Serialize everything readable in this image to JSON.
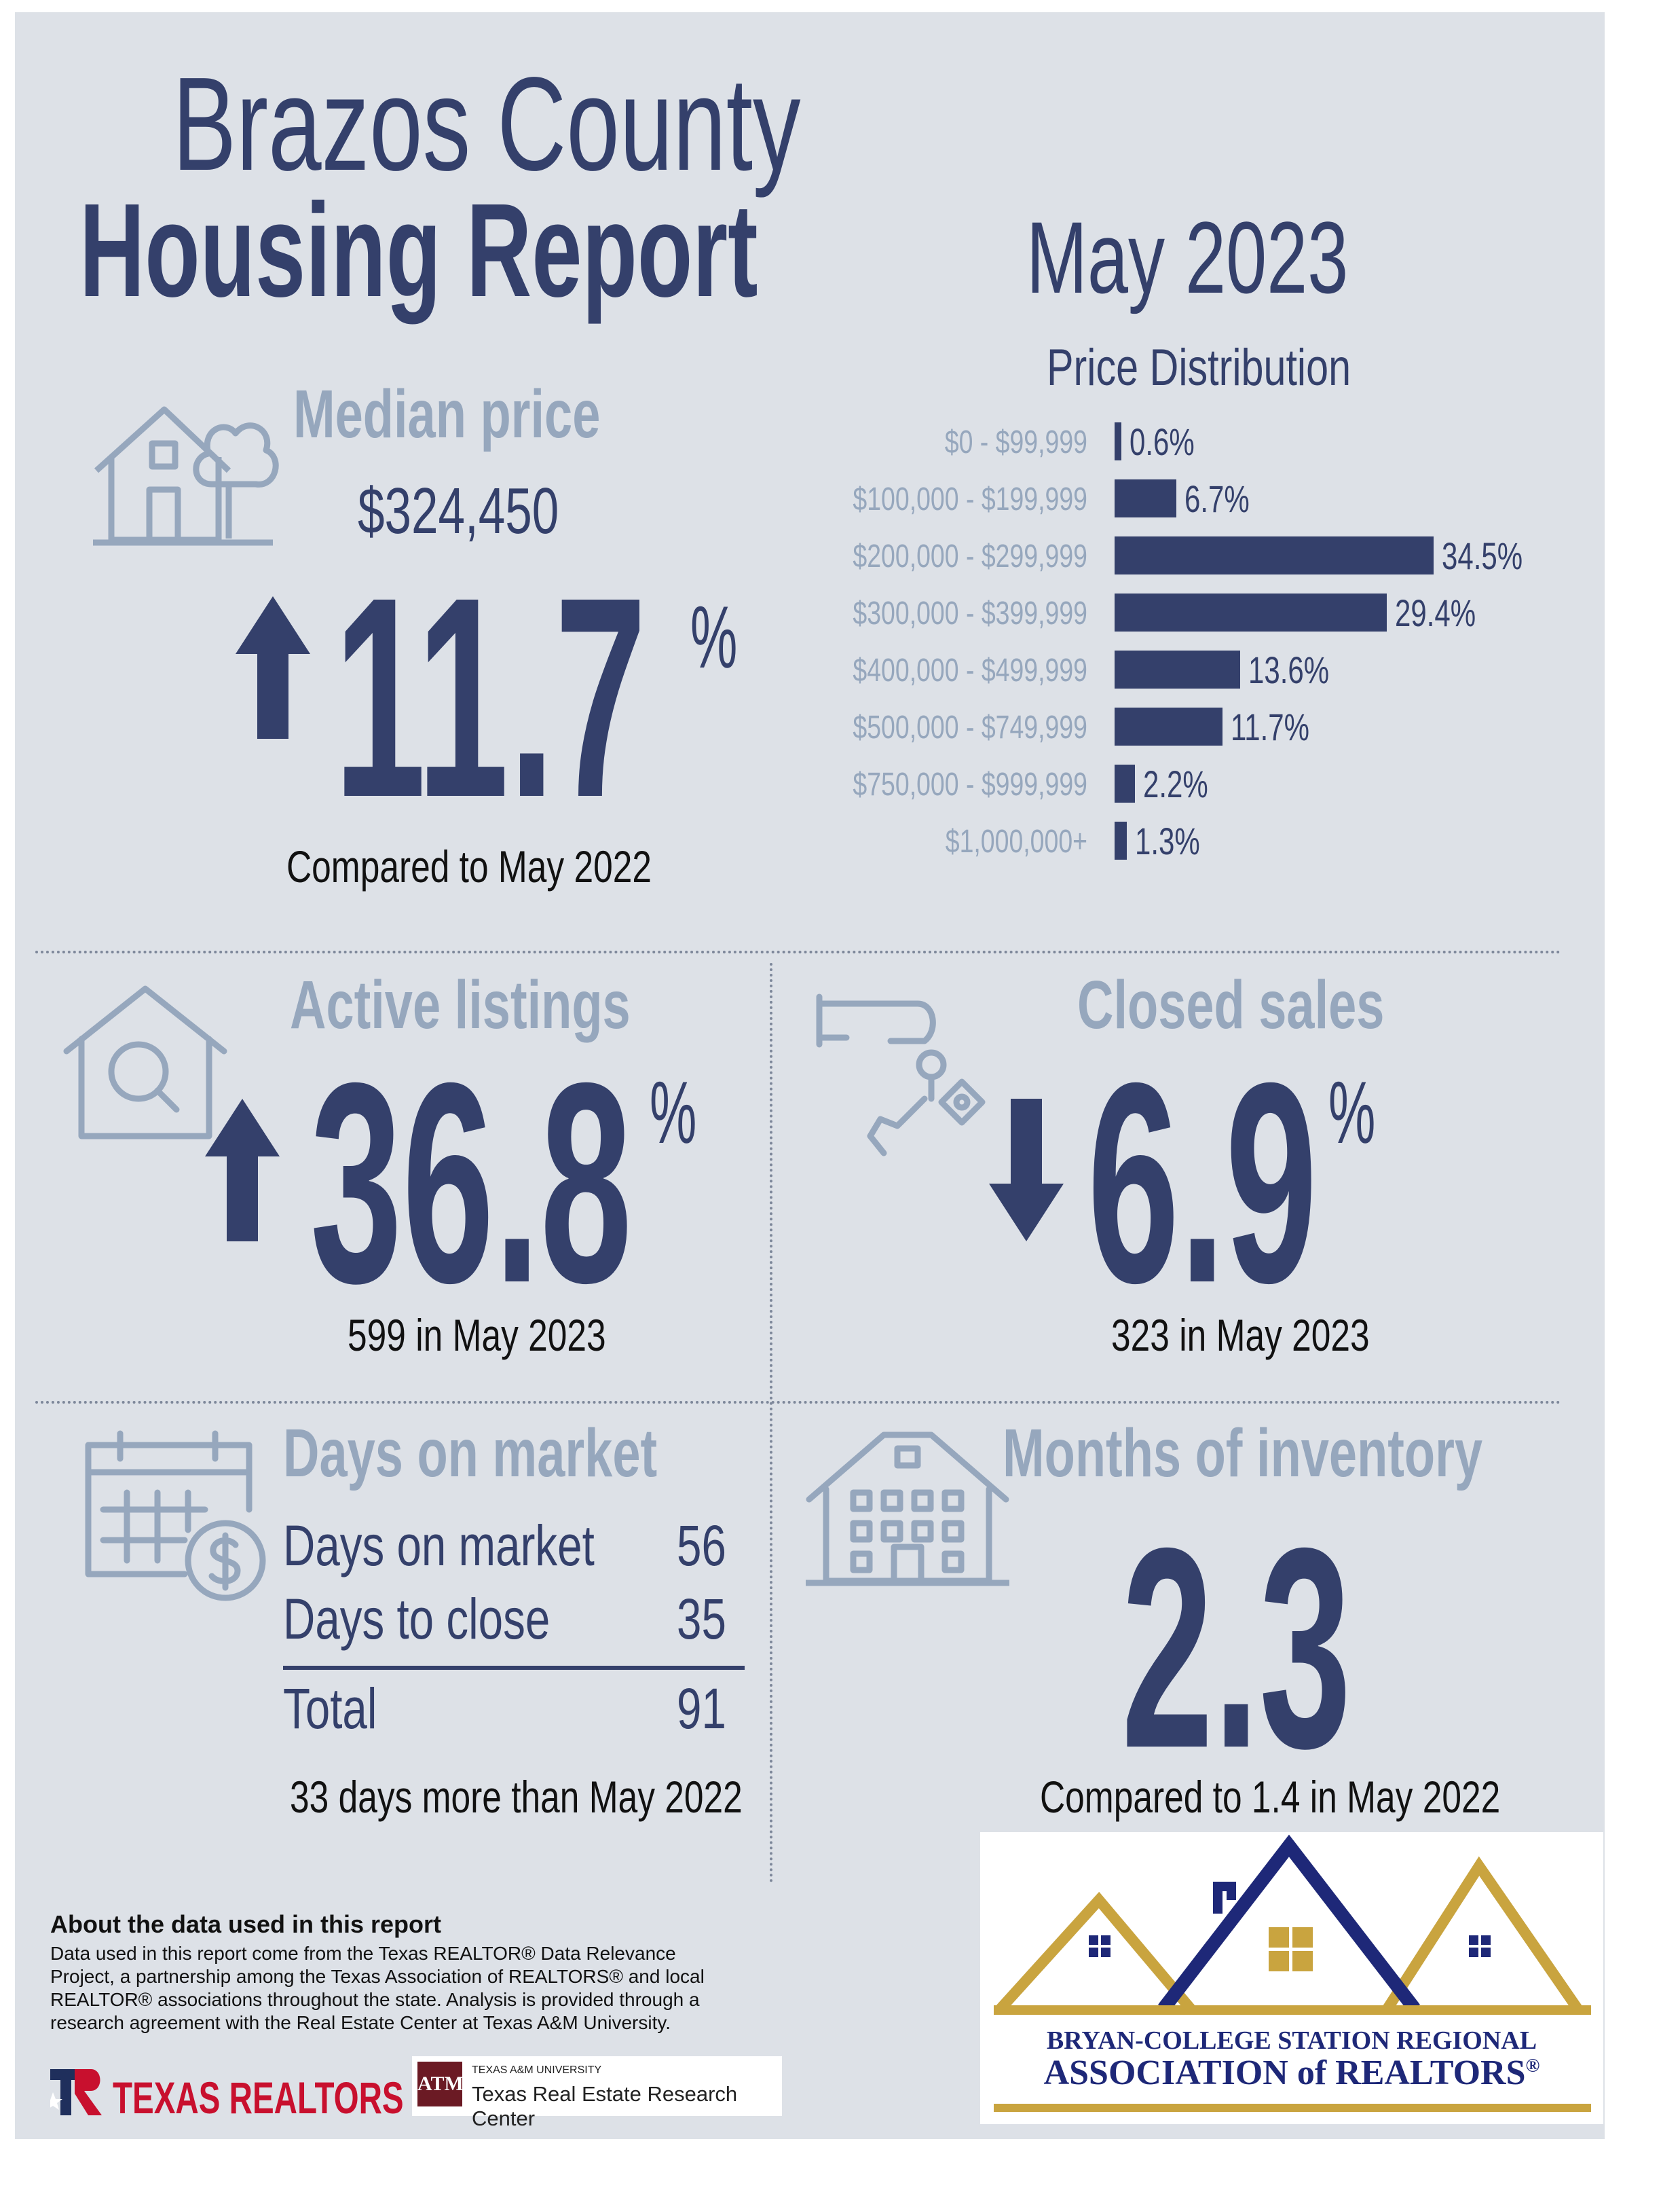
{
  "header": {
    "title_line1": "Brazos County",
    "title_line2": "Housing Report",
    "month": "May 2023"
  },
  "median_price": {
    "title": "Median price",
    "value": "$324,450",
    "change": "11.7",
    "percent_sign": "%",
    "direction": "up",
    "caption": "Compared to May 2022",
    "icon": "house-tree-icon"
  },
  "price_distribution": {
    "title": "Price Distribution",
    "chart_data": {
      "type": "bar",
      "orientation": "horizontal",
      "title": "Price Distribution",
      "categories": [
        "$0 - $99,999",
        "$100,000 - $199,999",
        "$200,000 - $299,999",
        "$300,000 - $399,999",
        "$400,000 - $499,999",
        "$500,000 - $749,999",
        "$750,000 - $999,999",
        "$1,000,000+"
      ],
      "values": [
        0.6,
        6.7,
        34.5,
        29.4,
        13.6,
        11.7,
        2.2,
        1.3
      ],
      "value_labels": [
        "0.6%",
        "6.7%",
        "34.5%",
        "29.4%",
        "13.6%",
        "11.7%",
        "2.2%",
        "1.3%"
      ],
      "unit": "%",
      "grid": false
    }
  },
  "active_listings": {
    "title": "Active listings",
    "change": "36.8",
    "percent_sign": "%",
    "direction": "up",
    "caption": "599 in May 2023",
    "icon": "house-search-icon"
  },
  "closed_sales": {
    "title": "Closed sales",
    "change": "6.9",
    "percent_sign": "%",
    "direction": "down",
    "caption": "323 in May 2023",
    "icon": "hand-keys-icon"
  },
  "days_on_market": {
    "title": "Days on market",
    "rows": [
      {
        "label": "Days on market",
        "value": "56"
      },
      {
        "label": "Days to close",
        "value": "35"
      }
    ],
    "total_label": "Total",
    "total_value": "91",
    "caption": "33 days more than May 2022",
    "icon": "calendar-dollar-icon"
  },
  "months_inventory": {
    "title": "Months of inventory",
    "value": "2.3",
    "caption": "Compared to 1.4 in May 2022",
    "icon": "apartment-building-icon"
  },
  "about": {
    "title": "About the data used in this report",
    "text": "Data used in this report come from the Texas REALTOR® Data Relevance Project, a partnership among the Texas Association of REALTORS® and local REALTOR® associations throughout the state. Analysis is provided through a research agreement with the Real Estate Center at Texas A&M University."
  },
  "logos": {
    "texas_realtors": "TEXAS REALTORS",
    "tamu_small": "TEXAS A&M UNIVERSITY",
    "tamu_center": "Texas Real Estate Research Center",
    "tamu_mark": "ATM",
    "bcs_line1": "BRYAN-COLLEGE STATION REGIONAL",
    "bcs_line2": "ASSOCIATION of REALTORS",
    "bcs_reg": "®"
  },
  "colors": {
    "navy": "#34406b",
    "light_blue": "#96a7bd",
    "background": "#dde1e7",
    "gold": "#c9a43f",
    "maroon": "#6b1a24",
    "red": "#c8102e"
  }
}
